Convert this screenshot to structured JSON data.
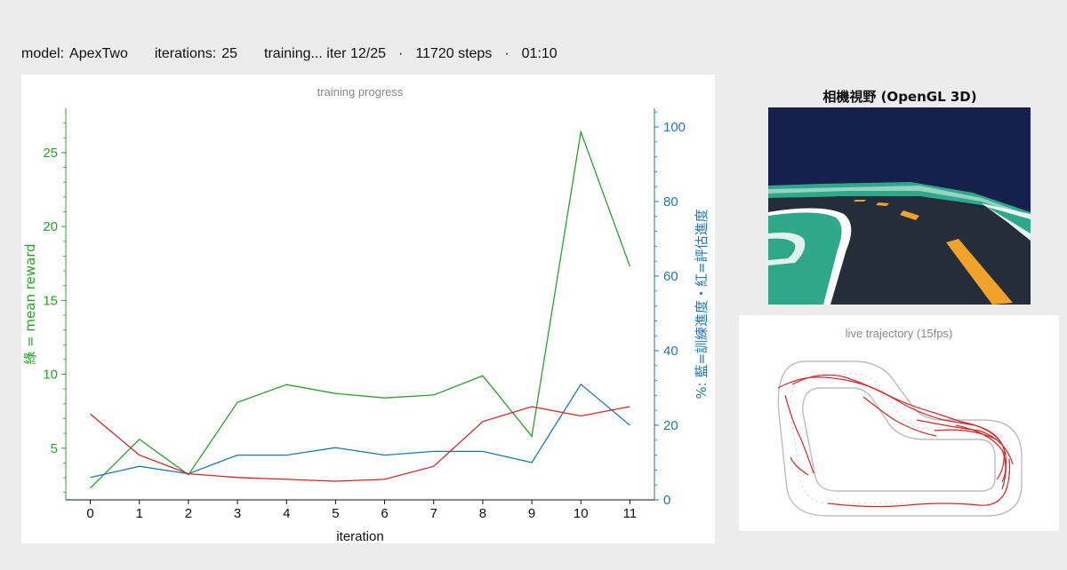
{
  "status": {
    "model_label": "model:",
    "model_value": "ApexTwo",
    "iterations_label": "iterations:",
    "iterations_value": "25",
    "progress_text": "training... iter 12/25",
    "steps_text": "11720 steps",
    "elapsed_text": "01:10",
    "separator": "·"
  },
  "camera": {
    "title": "相機視野 (OpenGL 3D)",
    "colors": {
      "sky": "#15204d",
      "road": "#252c3a",
      "grass": "#2fa889",
      "line": "#f0a22a"
    }
  },
  "trajectory": {
    "title": "live trajectory (15fps)"
  },
  "chart_data": {
    "type": "line",
    "title": "training progress",
    "xlabel": "iteration",
    "ylabel_left": "綠 = mean reward",
    "ylabel_right": "%: 藍=訓練進度・紅=評估進度",
    "x": [
      0,
      1,
      2,
      3,
      4,
      5,
      6,
      7,
      8,
      9,
      10,
      11
    ],
    "xlim": [
      -0.5,
      11.5
    ],
    "ylim_left": [
      1.5,
      28
    ],
    "ylim_right": [
      0,
      105
    ],
    "yticks_left": [
      5,
      10,
      15,
      20,
      25
    ],
    "yticks_right": [
      0,
      20,
      40,
      60,
      80,
      100
    ],
    "grid": false,
    "series": [
      {
        "name": "mean reward",
        "axis": "left",
        "color": "#2ca02c",
        "values": [
          2.3,
          5.6,
          3.2,
          8.1,
          9.3,
          8.7,
          8.4,
          8.6,
          9.9,
          5.8,
          26.4,
          17.3
        ]
      },
      {
        "name": "訓練進度",
        "axis": "right",
        "color": "#1f77b4",
        "values": [
          6,
          9,
          7,
          12,
          12,
          14,
          12,
          13,
          13,
          10,
          31,
          20
        ]
      },
      {
        "name": "評估進度",
        "axis": "right",
        "color": "#d62728",
        "values": [
          23,
          12,
          7,
          6,
          5.5,
          5,
          5.5,
          9,
          21,
          25,
          22.5,
          25
        ]
      }
    ],
    "colors": {
      "left_axis": "#2ca02c",
      "right_axis": "#1f77b4",
      "bottom_axis": "#111111"
    }
  }
}
